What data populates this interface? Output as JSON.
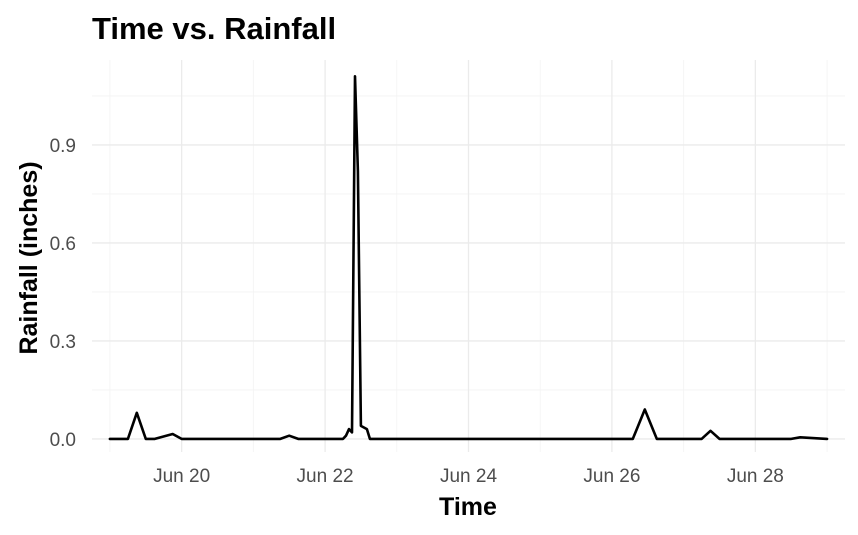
{
  "chart_data": {
    "type": "line",
    "title": "Time vs. Rainfall",
    "xlabel": "Time",
    "ylabel": "Rainfall (inches)",
    "x_ticks": [
      "Jun 20",
      "Jun 22",
      "Jun 24",
      "Jun 26",
      "Jun 28"
    ],
    "y_ticks": [
      "0.0",
      "0.3",
      "0.6",
      "0.9"
    ],
    "xlim": [
      "2021-06-18T18:00",
      "2021-06-29T06:00"
    ],
    "ylim": [
      -0.04,
      1.16
    ],
    "grid": true,
    "series": [
      {
        "x": [
          "2021-06-19T00:00",
          "2021-06-19T06:00",
          "2021-06-19T09:00",
          "2021-06-19T12:00",
          "2021-06-19T15:00",
          "2021-06-19T21:00",
          "2021-06-20T00:00",
          "2021-06-20T06:00",
          "2021-06-20T12:00",
          "2021-06-20T15:00",
          "2021-06-21T00:00",
          "2021-06-21T06:00",
          "2021-06-21T09:00",
          "2021-06-21T12:00",
          "2021-06-21T15:00",
          "2021-06-21T18:00",
          "2021-06-22T00:00",
          "2021-06-22T03:00",
          "2021-06-22T06:00",
          "2021-06-22T07:00",
          "2021-06-22T08:00",
          "2021-06-22T09:00",
          "2021-06-22T10:00",
          "2021-06-22T11:00",
          "2021-06-22T12:00",
          "2021-06-22T14:00",
          "2021-06-22T15:00",
          "2021-06-23T00:00",
          "2021-06-26T00:00",
          "2021-06-26T07:00",
          "2021-06-26T11:00",
          "2021-06-26T15:00",
          "2021-06-27T00:00",
          "2021-06-27T06:00",
          "2021-06-27T09:00",
          "2021-06-27T12:00",
          "2021-06-27T18:00",
          "2021-06-27T21:00",
          "2021-06-28T00:00",
          "2021-06-28T03:00",
          "2021-06-28T06:00",
          "2021-06-28T12:00",
          "2021-06-28T15:00",
          "2021-06-29T00:00"
        ],
        "y": [
          0.0,
          0.0,
          0.08,
          0.0,
          0.0,
          0.015,
          0.0,
          0.0,
          0.0,
          0.0,
          0.0,
          0.0,
          0.0,
          0.01,
          0.0,
          0.0,
          0.0,
          0.0,
          0.0,
          0.01,
          0.03,
          0.02,
          1.11,
          0.82,
          0.04,
          0.03,
          0.0,
          0.0,
          0.0,
          0.0,
          0.09,
          0.0,
          0.0,
          0.0,
          0.025,
          0.0,
          0.0,
          0.0,
          0.0,
          0.0,
          0.0,
          0.0,
          0.005,
          0.0
        ]
      }
    ]
  }
}
